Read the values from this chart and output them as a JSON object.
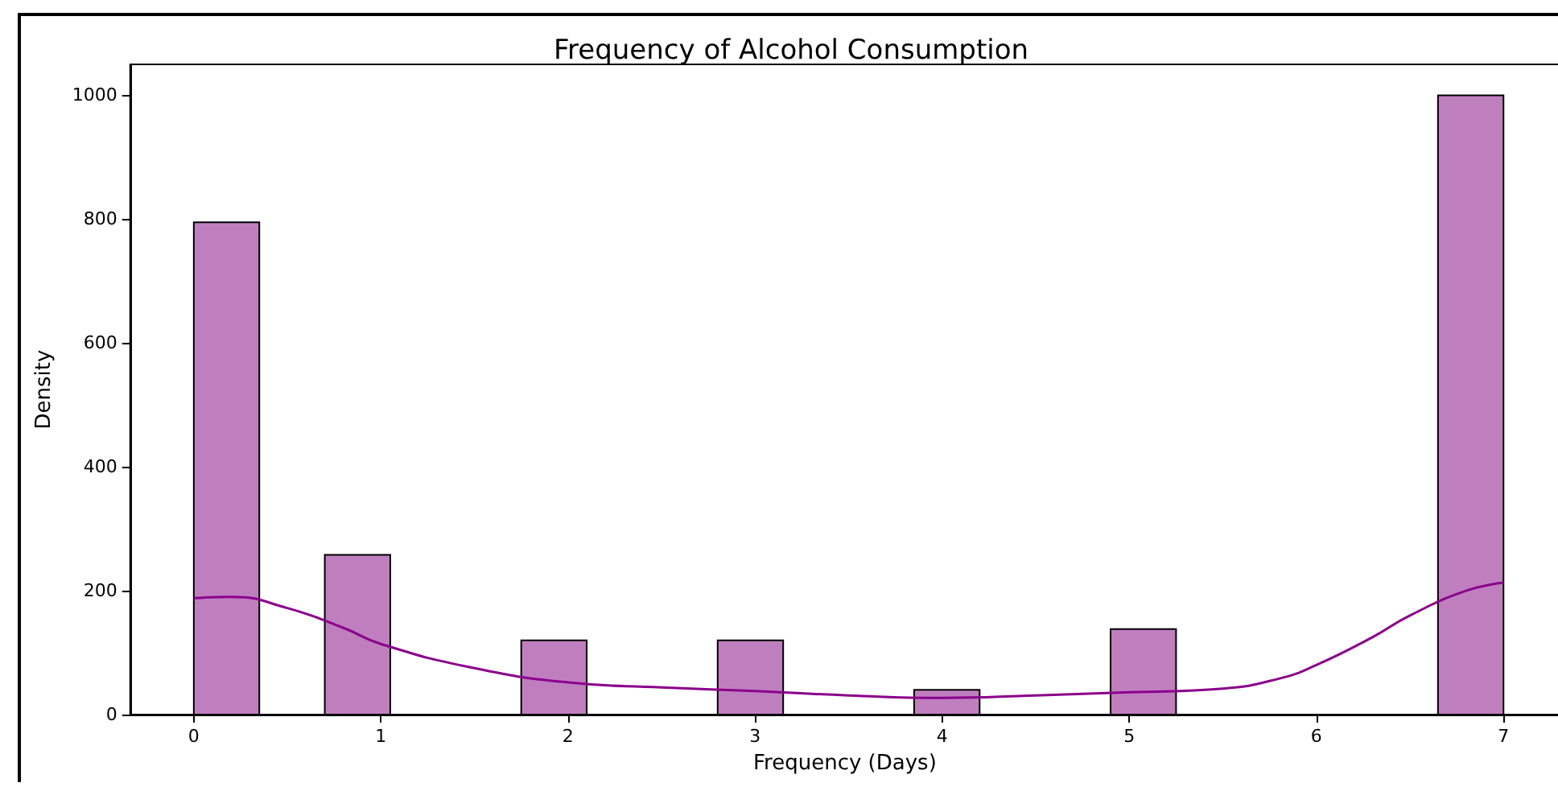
{
  "chart_data": {
    "type": "histogram",
    "title": "Frequency of Alcohol Consumption",
    "xlabel": "Frequency (Days)",
    "ylabel": "Density",
    "bins": [
      0,
      0.35,
      0.7,
      1.05,
      1.4,
      1.75,
      2.1,
      2.45,
      2.8,
      3.15,
      3.5,
      3.85,
      4.2,
      4.55,
      4.9,
      5.25,
      5.6,
      5.95,
      6.3,
      6.65,
      7
    ],
    "values": [
      795,
      0,
      258,
      0,
      0,
      120,
      0,
      0,
      120,
      0,
      0,
      40,
      0,
      0,
      138,
      0,
      0,
      0,
      0,
      1000
    ],
    "color": "#bf7fbf",
    "series": [
      {
        "type": "line",
        "color": "#8b008b",
        "x": [
          0,
          0.2,
          0.5,
          0.8,
          1,
          1.5,
          2,
          2.5,
          3,
          3.5,
          4,
          4.5,
          5,
          5.5,
          5.8,
          6,
          6.3,
          6.5,
          6.8,
          7
        ],
        "values": [
          188,
          190,
          172,
          140,
          114,
          75,
          52,
          44,
          38,
          31,
          27,
          31,
          36,
          42,
          58,
          80,
          125,
          160,
          200,
          213
        ]
      }
    ],
    "xlim": [
      -0.34,
      7.3
    ],
    "xticks": [
      0,
      1,
      2,
      3,
      4,
      5,
      6,
      7
    ],
    "ylim": [
      0,
      1050
    ],
    "yticks": [
      0,
      200,
      400,
      600,
      800,
      1000
    ],
    "grid": false
  }
}
